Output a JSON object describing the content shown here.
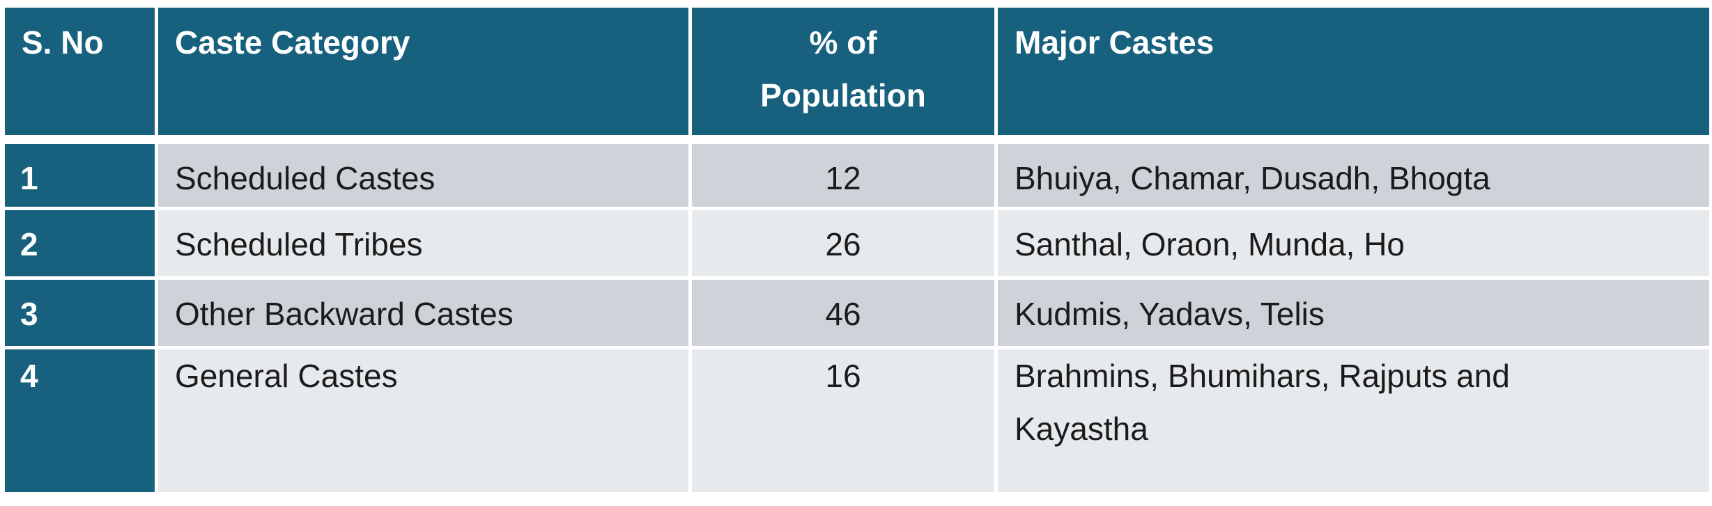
{
  "table": {
    "headers": {
      "sno": "S. No",
      "category": "Caste Category",
      "percent_line1": "% of",
      "percent_line2": "Population",
      "major": "Major Castes"
    },
    "rows": [
      {
        "sno": "1",
        "category": "Scheduled Castes",
        "percent": "12",
        "major": "Bhuiya, Chamar, Dusadh, Bhogta"
      },
      {
        "sno": "2",
        "category": "Scheduled Tribes",
        "percent": "26",
        "major": "Santhal, Oraon, Munda, Ho"
      },
      {
        "sno": "3",
        "category": "Other Backward Castes",
        "percent": "46",
        "major": "Kudmis, Yadavs, Telis"
      },
      {
        "sno": "4",
        "category": "General Castes",
        "percent": "16",
        "major_line1": "Brahmins, Bhumihars, Rajputs and",
        "major_line2": "Kayastha"
      }
    ]
  },
  "colors": {
    "header_bg": "#17617f",
    "header_text": "#ffffff",
    "row_odd_bg": "#ced3da",
    "row_even_bg": "#e7eaed"
  }
}
